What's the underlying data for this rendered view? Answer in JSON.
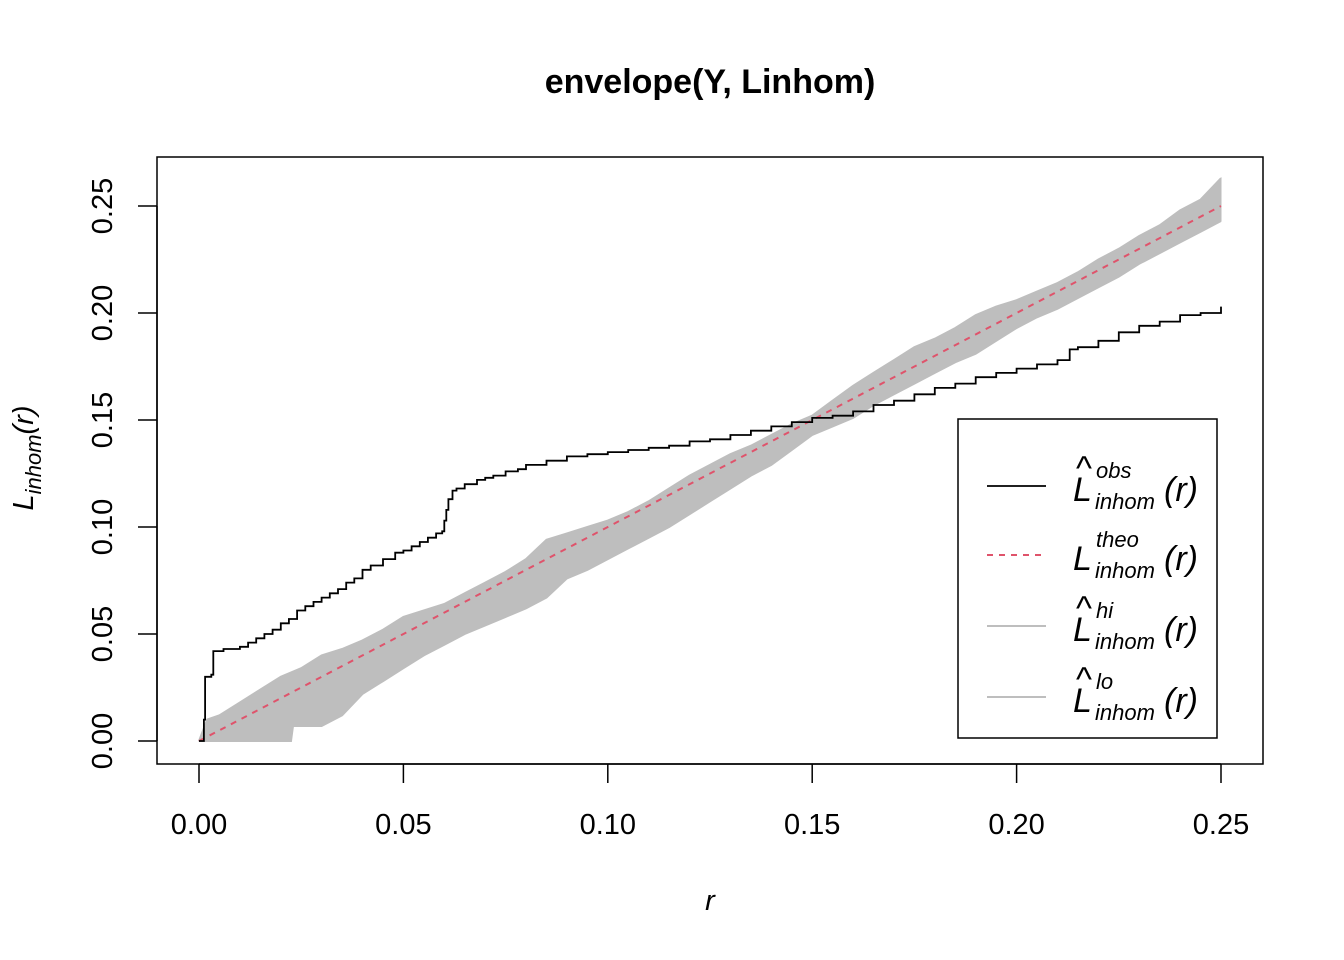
{
  "chart_data": {
    "type": "line",
    "title": "envelope(Y, Linhom)",
    "xlabel": "r",
    "ylabel": {
      "base": "L",
      "sub": "inhom",
      "arg": "(r)"
    },
    "xlim": [
      0.0,
      0.25
    ],
    "ylim": [
      0.0,
      0.25
    ],
    "x_ticks": [
      "0.00",
      "0.05",
      "0.10",
      "0.15",
      "0.20",
      "0.25"
    ],
    "y_ticks": [
      "0.00",
      "0.05",
      "0.10",
      "0.15",
      "0.20",
      "0.25"
    ],
    "grid": false,
    "legend_position": "bottom-right",
    "colors": {
      "obs": "#000000",
      "theo": "#DF536B",
      "envelope": "#BEBEBE"
    },
    "legend": [
      {
        "key": "obs",
        "base": "L",
        "hat": true,
        "sub": "inhom",
        "sup": "obs",
        "arg": "(r)",
        "style": "solid",
        "color": "#000000"
      },
      {
        "key": "theo",
        "base": "L",
        "hat": false,
        "sub": "inhom",
        "sup": "theo",
        "arg": "(r)",
        "style": "dashed",
        "color": "#DF536B"
      },
      {
        "key": "hi",
        "base": "L",
        "hat": true,
        "sub": "inhom",
        "sup": "hi",
        "arg": "(r)",
        "style": "solid",
        "color": "#BEBEBE"
      },
      {
        "key": "lo",
        "base": "L",
        "hat": true,
        "sub": "inhom",
        "sup": "lo",
        "arg": "(r)",
        "style": "solid",
        "color": "#BEBEBE"
      }
    ],
    "series": [
      {
        "key": "obs",
        "x": [
          0.0,
          0.0008,
          0.0012,
          0.0015,
          0.0025,
          0.003,
          0.0035,
          0.0045,
          0.006,
          0.008,
          0.01,
          0.012,
          0.014,
          0.016,
          0.018,
          0.02,
          0.022,
          0.024,
          0.026,
          0.028,
          0.03,
          0.032,
          0.034,
          0.036,
          0.038,
          0.04,
          0.042,
          0.045,
          0.048,
          0.05,
          0.052,
          0.054,
          0.056,
          0.058,
          0.0595,
          0.06,
          0.0605,
          0.061,
          0.062,
          0.063,
          0.065,
          0.068,
          0.07,
          0.072,
          0.075,
          0.078,
          0.08,
          0.085,
          0.09,
          0.095,
          0.1,
          0.105,
          0.11,
          0.115,
          0.12,
          0.125,
          0.13,
          0.135,
          0.14,
          0.145,
          0.15,
          0.155,
          0.16,
          0.165,
          0.17,
          0.175,
          0.18,
          0.185,
          0.19,
          0.195,
          0.2,
          0.205,
          0.21,
          0.213,
          0.215,
          0.22,
          0.225,
          0.23,
          0.235,
          0.24,
          0.245,
          0.25
        ],
        "y": [
          0.0,
          0.0,
          0.01,
          0.03,
          0.03,
          0.031,
          0.042,
          0.042,
          0.043,
          0.043,
          0.044,
          0.046,
          0.048,
          0.05,
          0.052,
          0.055,
          0.057,
          0.061,
          0.063,
          0.065,
          0.067,
          0.069,
          0.071,
          0.074,
          0.076,
          0.08,
          0.082,
          0.085,
          0.088,
          0.089,
          0.091,
          0.093,
          0.095,
          0.097,
          0.098,
          0.103,
          0.108,
          0.113,
          0.117,
          0.118,
          0.12,
          0.122,
          0.123,
          0.124,
          0.126,
          0.127,
          0.129,
          0.131,
          0.133,
          0.134,
          0.135,
          0.136,
          0.137,
          0.138,
          0.14,
          0.141,
          0.143,
          0.145,
          0.147,
          0.149,
          0.151,
          0.152,
          0.154,
          0.157,
          0.159,
          0.162,
          0.165,
          0.167,
          0.17,
          0.172,
          0.174,
          0.176,
          0.178,
          0.183,
          0.184,
          0.187,
          0.191,
          0.194,
          0.196,
          0.199,
          0.2,
          0.203
        ]
      },
      {
        "key": "theo",
        "x": [
          0.0,
          0.25
        ],
        "y": [
          0.0,
          0.25
        ]
      },
      {
        "key": "hi",
        "x": [
          0.0,
          0.002,
          0.005,
          0.01,
          0.015,
          0.02,
          0.025,
          0.03,
          0.035,
          0.04,
          0.045,
          0.05,
          0.055,
          0.06,
          0.065,
          0.07,
          0.075,
          0.08,
          0.085,
          0.09,
          0.095,
          0.1,
          0.105,
          0.11,
          0.115,
          0.12,
          0.125,
          0.13,
          0.135,
          0.14,
          0.145,
          0.15,
          0.155,
          0.16,
          0.165,
          0.17,
          0.175,
          0.18,
          0.185,
          0.19,
          0.195,
          0.2,
          0.205,
          0.21,
          0.215,
          0.22,
          0.225,
          0.23,
          0.235,
          0.24,
          0.245,
          0.25
        ],
        "y": [
          0.0,
          0.01,
          0.012,
          0.018,
          0.024,
          0.03,
          0.034,
          0.04,
          0.043,
          0.047,
          0.052,
          0.058,
          0.061,
          0.064,
          0.069,
          0.074,
          0.079,
          0.085,
          0.094,
          0.097,
          0.1,
          0.103,
          0.107,
          0.112,
          0.118,
          0.124,
          0.129,
          0.134,
          0.138,
          0.143,
          0.148,
          0.152,
          0.159,
          0.166,
          0.172,
          0.178,
          0.184,
          0.188,
          0.193,
          0.199,
          0.203,
          0.206,
          0.21,
          0.214,
          0.219,
          0.225,
          0.23,
          0.236,
          0.241,
          0.248,
          0.253,
          0.263
        ]
      },
      {
        "key": "lo",
        "x": [
          0.0,
          0.002,
          0.005,
          0.01,
          0.015,
          0.02,
          0.022,
          0.0225,
          0.023,
          0.025,
          0.03,
          0.035,
          0.04,
          0.045,
          0.05,
          0.055,
          0.06,
          0.065,
          0.07,
          0.075,
          0.08,
          0.085,
          0.09,
          0.095,
          0.1,
          0.105,
          0.11,
          0.115,
          0.12,
          0.125,
          0.13,
          0.135,
          0.14,
          0.145,
          0.15,
          0.155,
          0.16,
          0.165,
          0.17,
          0.175,
          0.18,
          0.185,
          0.19,
          0.195,
          0.2,
          0.205,
          0.21,
          0.215,
          0.22,
          0.225,
          0.23,
          0.235,
          0.24,
          0.245,
          0.25
        ],
        "y": [
          0.0,
          0.0,
          0.0,
          0.0,
          0.0,
          0.0,
          0.0,
          0.0,
          0.007,
          0.007,
          0.007,
          0.012,
          0.022,
          0.028,
          0.034,
          0.04,
          0.045,
          0.05,
          0.054,
          0.058,
          0.062,
          0.067,
          0.076,
          0.08,
          0.085,
          0.09,
          0.095,
          0.1,
          0.106,
          0.112,
          0.118,
          0.124,
          0.129,
          0.136,
          0.143,
          0.147,
          0.151,
          0.157,
          0.162,
          0.167,
          0.172,
          0.177,
          0.181,
          0.187,
          0.193,
          0.198,
          0.202,
          0.207,
          0.212,
          0.217,
          0.223,
          0.228,
          0.233,
          0.238,
          0.243
        ]
      }
    ]
  }
}
